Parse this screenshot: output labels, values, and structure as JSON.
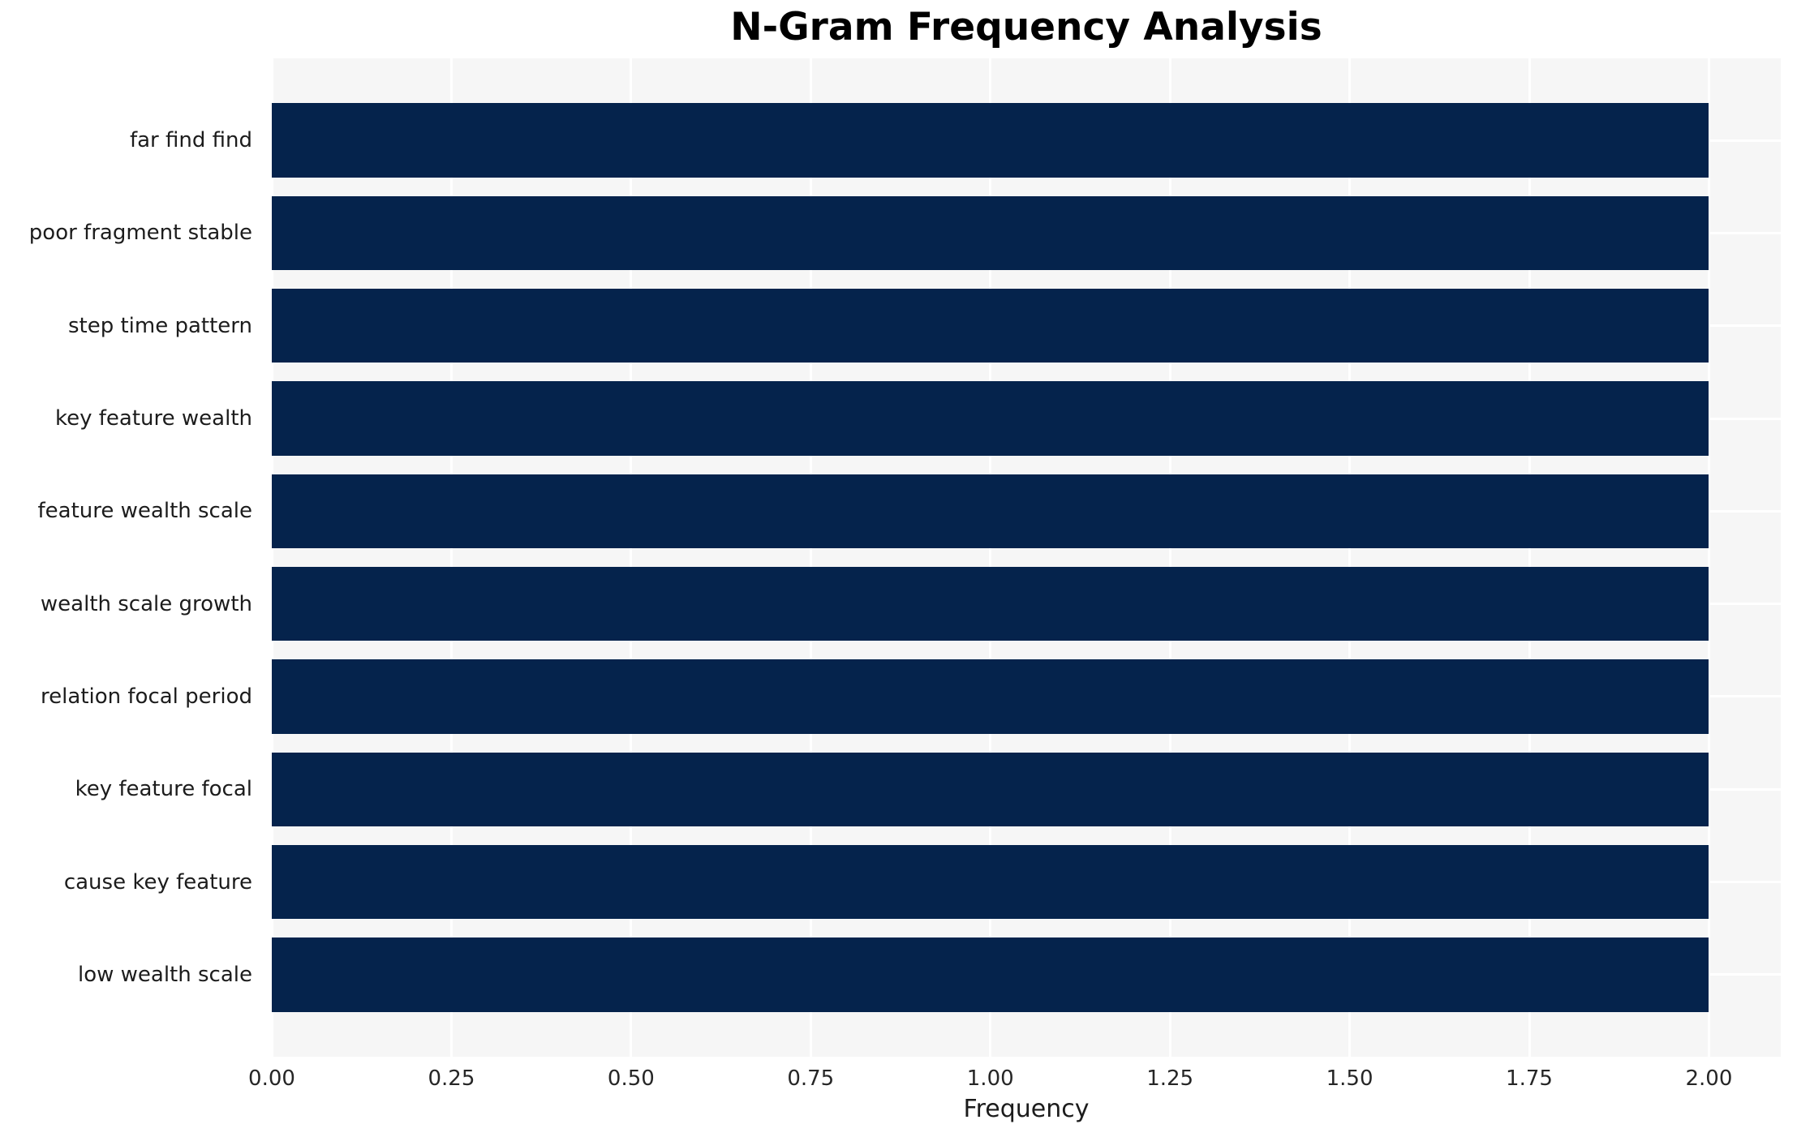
{
  "title": "N-Gram Frequency Analysis",
  "chart_data": {
    "type": "bar",
    "orientation": "horizontal",
    "title": "N-Gram Frequency Analysis",
    "categories": [
      "far find find",
      "poor fragment stable",
      "step time pattern",
      "key feature wealth",
      "feature wealth scale",
      "wealth scale growth",
      "relation focal period",
      "key feature focal",
      "cause key feature",
      "low wealth scale"
    ],
    "values": [
      2,
      2,
      2,
      2,
      2,
      2,
      2,
      2,
      2,
      2
    ],
    "xlabel": "Frequency",
    "ylabel": "",
    "xlim": [
      0,
      2.1
    ],
    "xtick_labels": [
      "0.00",
      "0.25",
      "0.50",
      "0.75",
      "1.00",
      "1.25",
      "1.50",
      "1.75",
      "2.00"
    ],
    "xtick_values": [
      0,
      0.25,
      0.5,
      0.75,
      1.0,
      1.25,
      1.5,
      1.75,
      2.0
    ],
    "grid": true,
    "legend": false,
    "colors": {
      "bar": "#05234c",
      "plot_background": "#f6f6f6",
      "gridline": "#ffffff",
      "title_text": "#000000",
      "tick_text": "#262626",
      "label_text": "#1c1c1c"
    }
  }
}
